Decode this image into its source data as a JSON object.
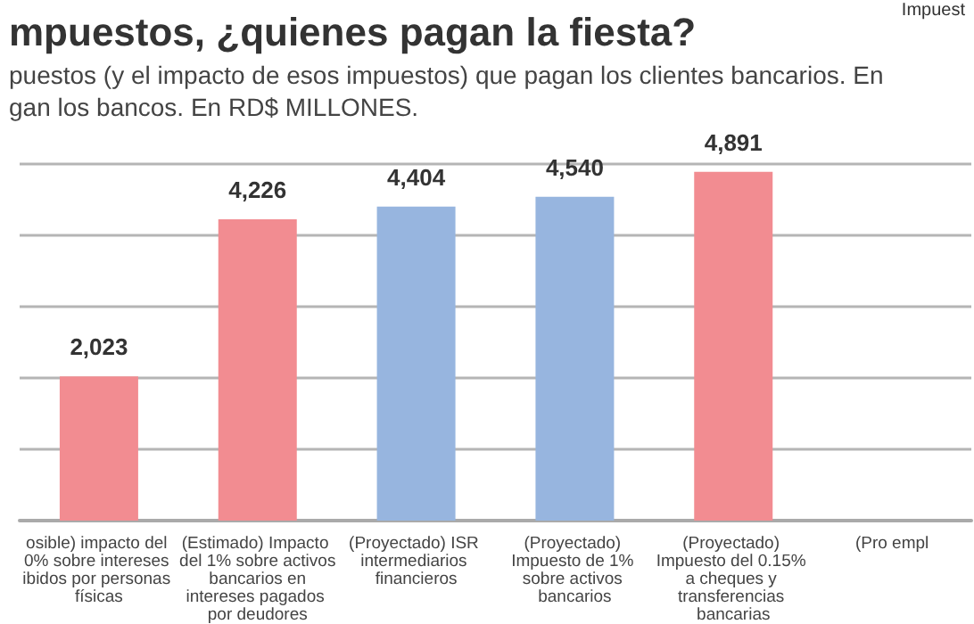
{
  "chart_data": {
    "type": "bar",
    "title": "mpuestos, ¿quienes pagan la fiesta?",
    "subtitle": "puestos (y el impacto de esos impuestos) que pagan los clientes bancarios. En\ngan los bancos. En RD$ MILLONES.",
    "annotations": [
      "Impuest"
    ],
    "categories": [
      "osible) impacto del 0% sobre intereses ibidos por personas físicas",
      "(Estimado) Impacto del 1% sobre activos bancarios en intereses pagados por deudores",
      "(Proyectado) ISR intermediarios financieros",
      "(Proyectado) Impuesto de 1% sobre activos bancarios",
      "(Proyectado) Impuesto del 0.15% a cheques y transferencias bancarias",
      "(Pro empl"
    ],
    "values": [
      2023,
      4226,
      4404,
      4540,
      4891,
      null
    ],
    "colors": [
      "#f28c91",
      "#f28c91",
      "#97b5df",
      "#97b5df",
      "#f28c91",
      "#f28c91"
    ],
    "value_labels": [
      "2,023",
      "4,226",
      "4,404",
      "4,540",
      "4,891",
      null
    ],
    "grid": "y"
  }
}
